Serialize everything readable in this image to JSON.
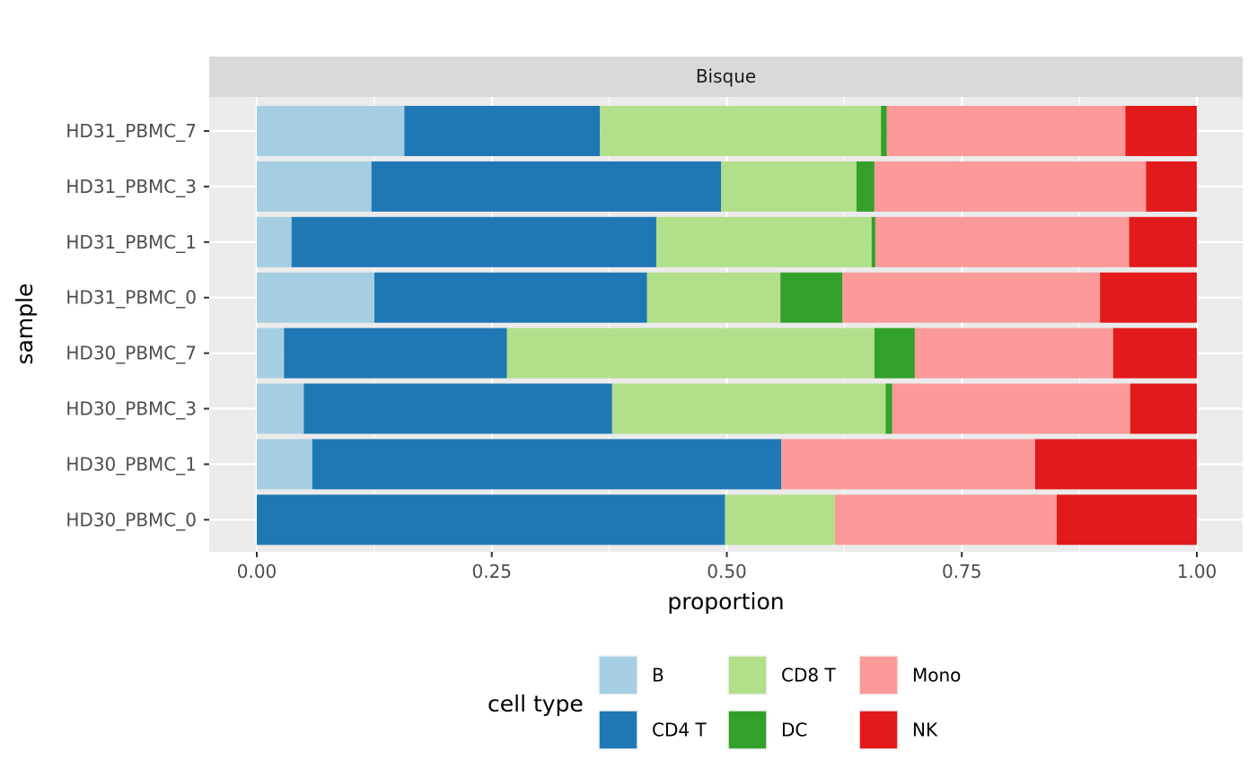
{
  "chart_data": {
    "type": "bar",
    "orientation": "horizontal",
    "stacked": true,
    "facet": "Bisque",
    "xlabel": "proportion",
    "ylabel": "sample",
    "xlim": [
      0,
      1
    ],
    "xticks": [
      "0.00",
      "0.25",
      "0.50",
      "0.75",
      "1.00"
    ],
    "grid": true,
    "legend_title": "cell type",
    "legend_position": "bottom",
    "categories": [
      "HD31_PBMC_7",
      "HD31_PBMC_3",
      "HD31_PBMC_1",
      "HD31_PBMC_0",
      "HD30_PBMC_7",
      "HD30_PBMC_3",
      "HD30_PBMC_1",
      "HD30_PBMC_0"
    ],
    "series": [
      {
        "name": "B",
        "color": "#A6CEE3",
        "values": [
          0.157,
          0.122,
          0.037,
          0.125,
          0.029,
          0.05,
          0.059,
          0.0
        ]
      },
      {
        "name": "CD4 T",
        "color": "#1F78B4",
        "values": [
          0.208,
          0.372,
          0.388,
          0.29,
          0.237,
          0.328,
          0.499,
          0.498
        ]
      },
      {
        "name": "CD8 T",
        "color": "#B2DF8A",
        "values": [
          0.299,
          0.144,
          0.229,
          0.142,
          0.391,
          0.291,
          0.0,
          0.117
        ]
      },
      {
        "name": "DC",
        "color": "#33A02C",
        "values": [
          0.006,
          0.019,
          0.004,
          0.066,
          0.043,
          0.007,
          0.0,
          0.0
        ]
      },
      {
        "name": "Mono",
        "color": "#FB9A99",
        "values": [
          0.254,
          0.289,
          0.27,
          0.274,
          0.211,
          0.253,
          0.27,
          0.236
        ]
      },
      {
        "name": "NK",
        "color": "#E31A1C",
        "values": [
          0.076,
          0.054,
          0.072,
          0.103,
          0.089,
          0.071,
          0.172,
          0.149
        ]
      }
    ]
  }
}
